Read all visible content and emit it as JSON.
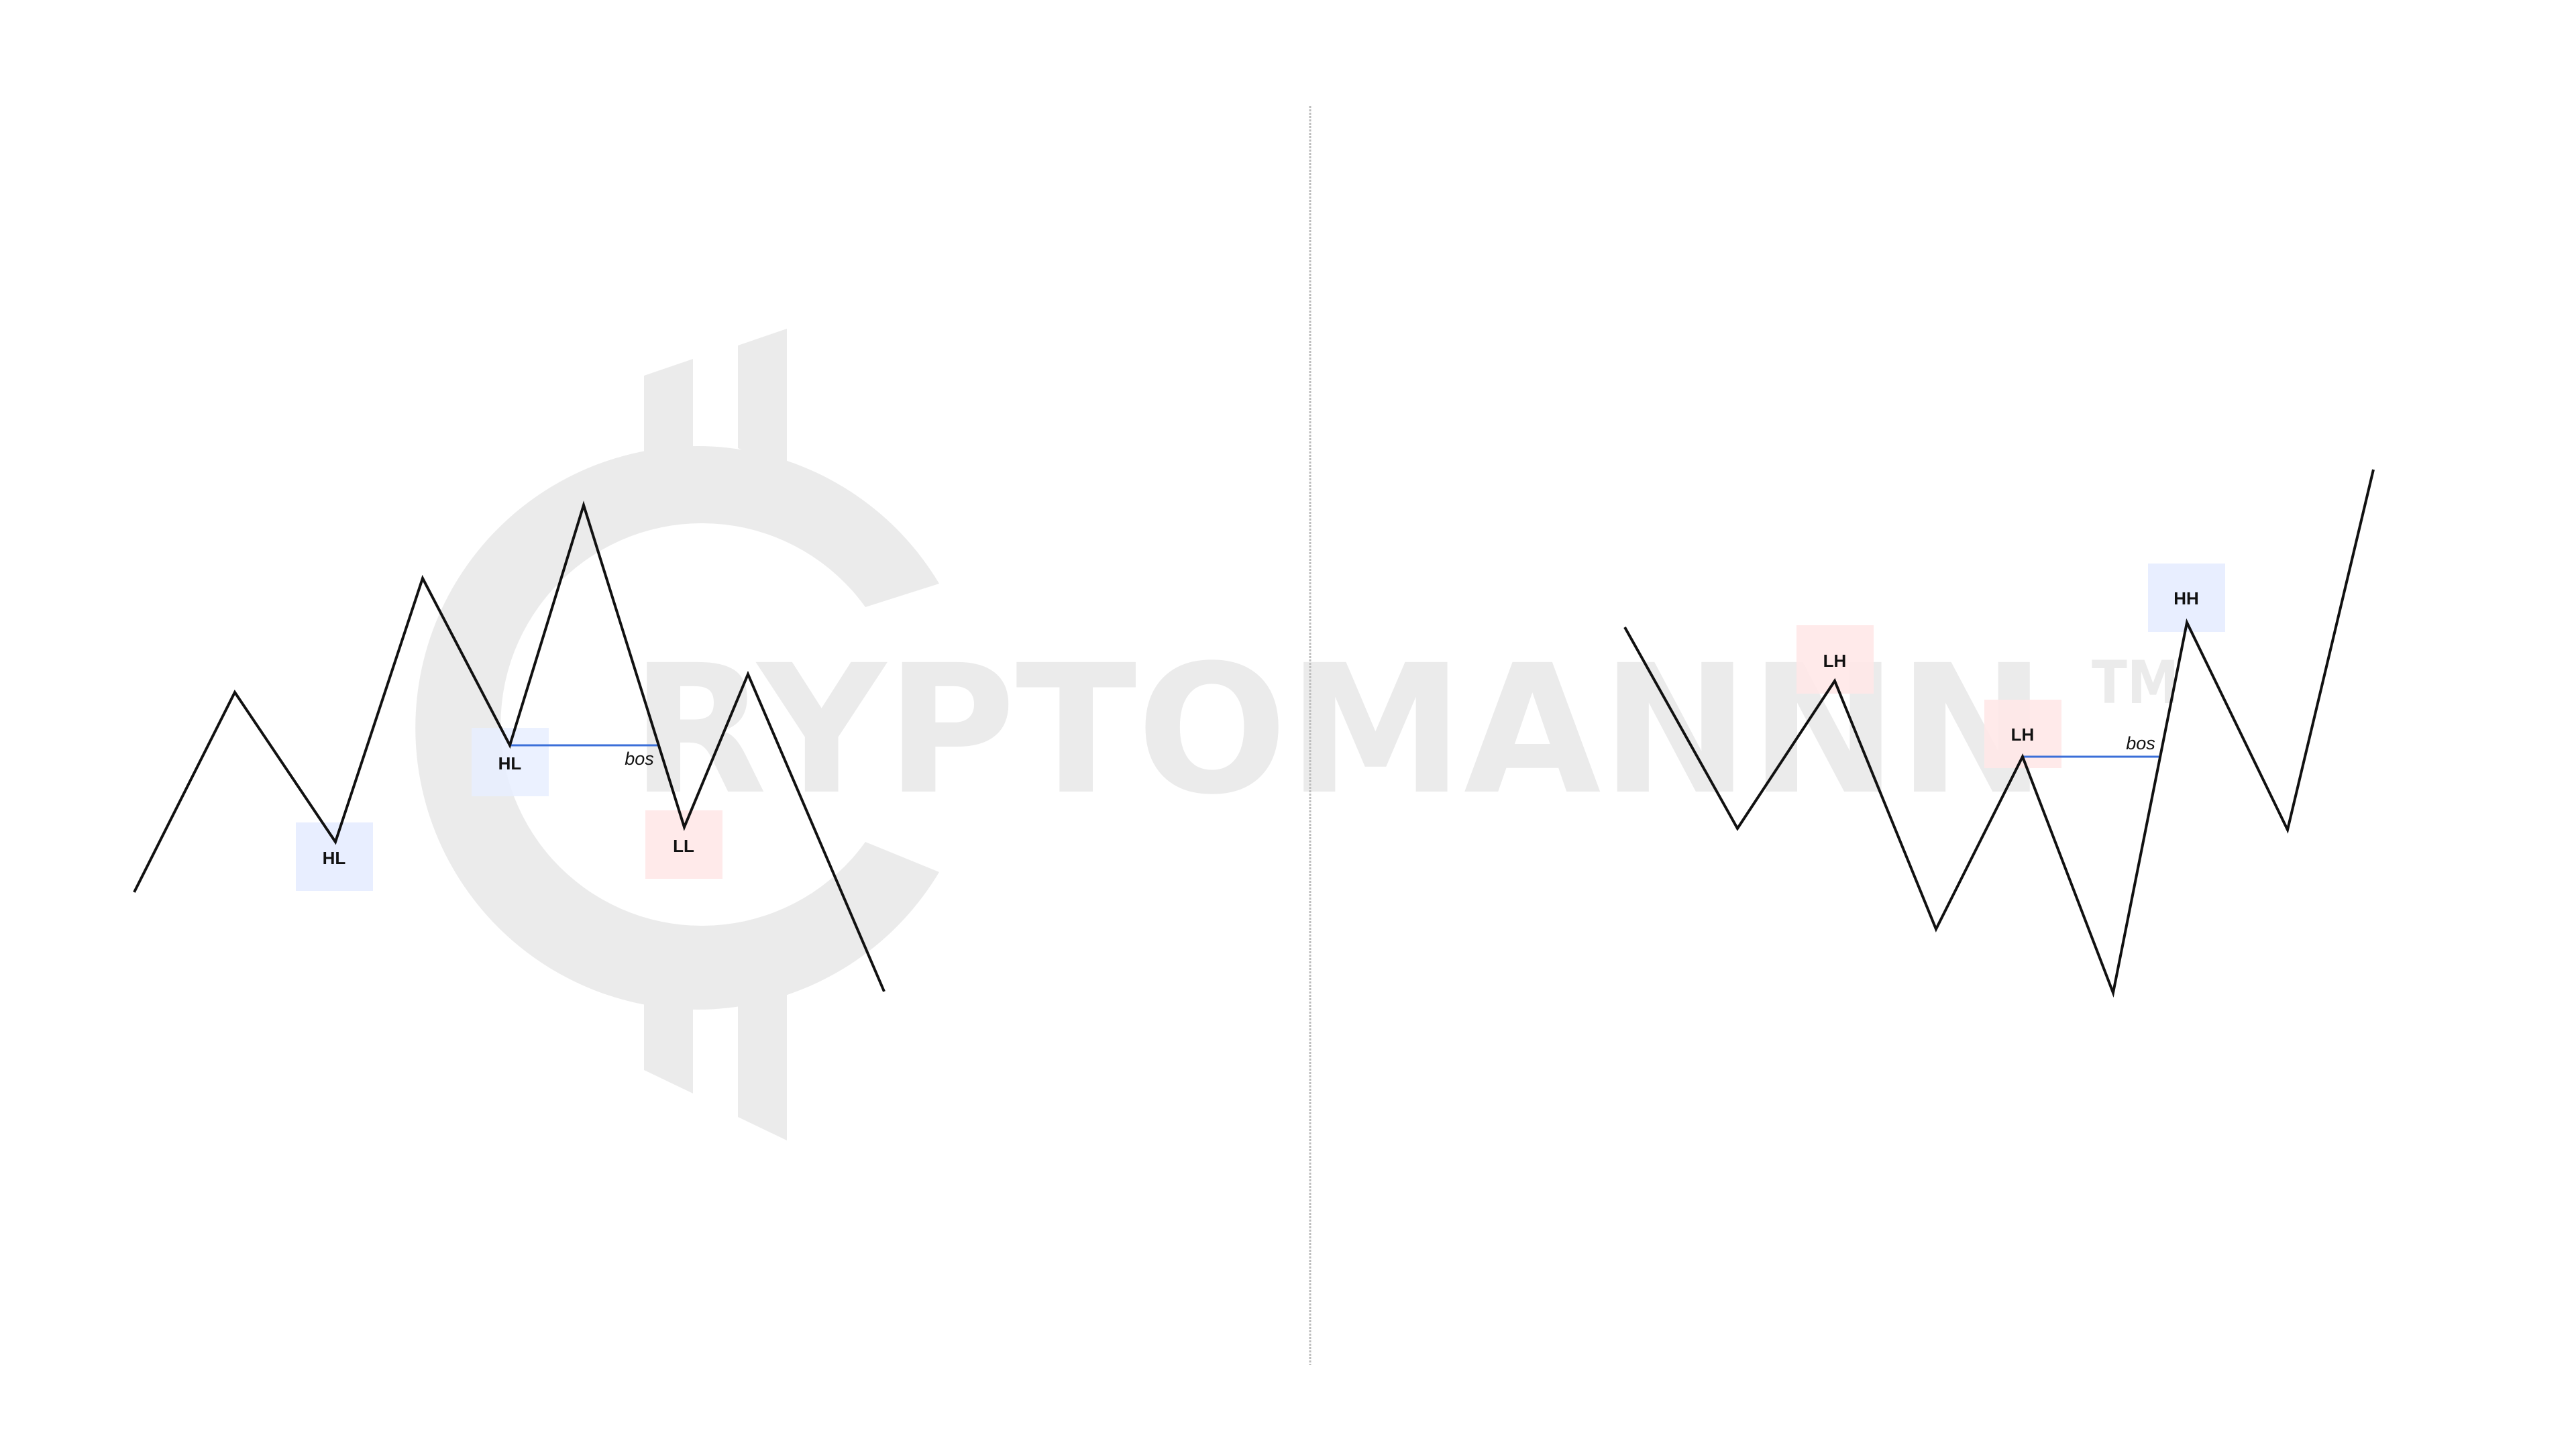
{
  "watermark": {
    "text": "RYPTOMANNN",
    "trademark": "TM",
    "logo_icon": "cryptocurrency-c-coin-icon",
    "color": "#ebebeb"
  },
  "divider_color": "#bdbdbd",
  "line_color": "#111111",
  "bos_line_color": "#3b6fd8",
  "box_colors": {
    "blue": "#e8eeff",
    "red": "#ffe8e8"
  },
  "left_diagram": {
    "labels": [
      {
        "text": "HL",
        "color": "blue"
      },
      {
        "text": "HL",
        "color": "blue"
      },
      {
        "text": "LL",
        "color": "red"
      }
    ],
    "bos_label": "bos"
  },
  "right_diagram": {
    "labels": [
      {
        "text": "LH",
        "color": "red"
      },
      {
        "text": "LH",
        "color": "red"
      },
      {
        "text": "HH",
        "color": "blue"
      }
    ],
    "bos_label": "bos"
  }
}
